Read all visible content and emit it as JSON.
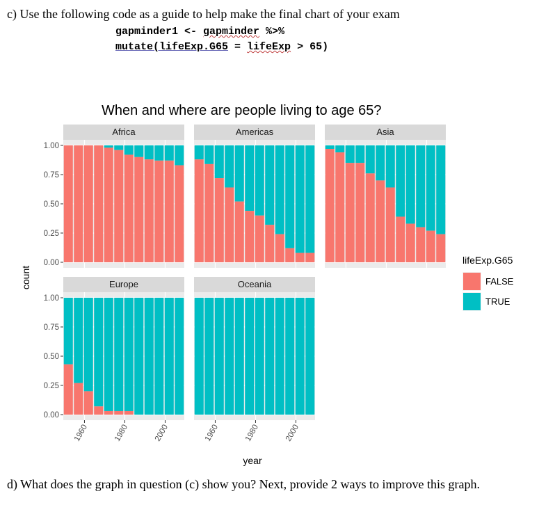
{
  "question_c": "c) Use the following code as a guide to help make the final chart of your exam",
  "code": {
    "line1_prefix": "gapminder1 <- ",
    "line1_obj": "gapminder",
    "line1_pipe": " %>%",
    "line2_fn": "mutate(lifeExp.G65",
    "line2_mid": " = ",
    "line2_var": "lifeExp",
    "line2_rest": " > 65)"
  },
  "question_d": "d) What does the graph in question (c) show you? Next, provide 2 ways to improve this graph.",
  "chart_data": {
    "type": "bar",
    "stacked": "fill",
    "title": "When and where are people living to age 65?",
    "xlabel": "year",
    "ylabel": "count",
    "ylim": [
      0,
      1
    ],
    "yticks": [
      "0.00",
      "0.25",
      "0.50",
      "0.75",
      "1.00"
    ],
    "xticks": [
      "1960",
      "1980",
      "2000"
    ],
    "x": [
      1952,
      1957,
      1962,
      1967,
      1972,
      1977,
      1982,
      1987,
      1992,
      1997,
      2002,
      2007
    ],
    "legend": {
      "title": "lifeExp.G65",
      "position": "right",
      "entries": [
        {
          "label": "FALSE",
          "color": "#F8766D"
        },
        {
          "label": "TRUE",
          "color": "#00BFC4"
        }
      ]
    },
    "facets": [
      {
        "name": "Africa",
        "false_share": [
          1,
          1,
          1,
          1,
          0.98,
          0.96,
          0.92,
          0.9,
          0.88,
          0.87,
          0.87,
          0.83
        ]
      },
      {
        "name": "Americas",
        "false_share": [
          0.88,
          0.84,
          0.72,
          0.64,
          0.52,
          0.44,
          0.4,
          0.32,
          0.24,
          0.12,
          0.08,
          0.08
        ]
      },
      {
        "name": "Asia",
        "false_share": [
          0.97,
          0.94,
          0.85,
          0.85,
          0.76,
          0.7,
          0.64,
          0.39,
          0.33,
          0.3,
          0.27,
          0.24
        ]
      },
      {
        "name": "Europe",
        "false_share": [
          0.43,
          0.27,
          0.2,
          0.07,
          0.03,
          0.03,
          0.03,
          0,
          0,
          0,
          0,
          0
        ]
      },
      {
        "name": "Oceania",
        "false_share": [
          0,
          0,
          0,
          0,
          0,
          0,
          0,
          0,
          0,
          0,
          0,
          0
        ]
      }
    ]
  }
}
